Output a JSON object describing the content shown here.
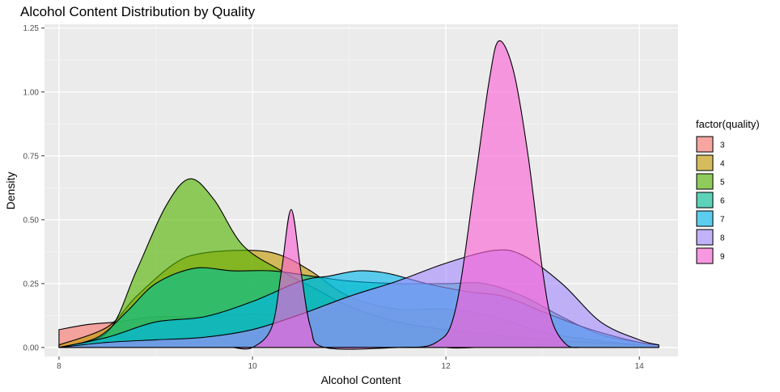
{
  "chart_data": {
    "type": "area",
    "title": "Alcohol Content Distribution by Quality",
    "xlabel": "Alcohol Content",
    "ylabel": "Density",
    "xlim": [
      7.85,
      14.4
    ],
    "ylim": [
      -0.035,
      1.265
    ],
    "x_ticks": [
      8,
      10,
      12,
      14
    ],
    "y_ticks": [
      0.0,
      0.25,
      0.5,
      0.75,
      1.0,
      1.25
    ],
    "x_tick_labels": [
      "8",
      "10",
      "12",
      "14"
    ],
    "y_tick_labels": [
      "0.00",
      "0.25",
      "0.50",
      "0.75",
      "1.00",
      "1.25"
    ],
    "grid": true,
    "legend": {
      "title": "factor(quality)",
      "position": "right"
    },
    "series": [
      {
        "name": "3",
        "color": "#F8766D",
        "points": [
          [
            8.0,
            0.07
          ],
          [
            8.3,
            0.09
          ],
          [
            8.6,
            0.1
          ],
          [
            9.0,
            0.12
          ],
          [
            9.5,
            0.12
          ],
          [
            10.0,
            0.13
          ],
          [
            10.5,
            0.12
          ],
          [
            11.0,
            0.08
          ],
          [
            11.5,
            0.03
          ],
          [
            12.0,
            0.0
          ],
          [
            12.3,
            0.0
          ]
        ]
      },
      {
        "name": "4",
        "color": "#C49A00",
        "points": [
          [
            8.0,
            0.01
          ],
          [
            8.5,
            0.08
          ],
          [
            8.8,
            0.2
          ],
          [
            9.2,
            0.33
          ],
          [
            9.5,
            0.37
          ],
          [
            10.0,
            0.38
          ],
          [
            10.3,
            0.36
          ],
          [
            10.6,
            0.3
          ],
          [
            11.0,
            0.2
          ],
          [
            11.5,
            0.15
          ],
          [
            12.0,
            0.15
          ],
          [
            12.5,
            0.12
          ],
          [
            13.0,
            0.06
          ],
          [
            13.5,
            0.03
          ],
          [
            14.0,
            0.01
          ],
          [
            14.2,
            0.0
          ]
        ]
      },
      {
        "name": "5",
        "color": "#53B400",
        "points": [
          [
            8.0,
            0.0
          ],
          [
            8.5,
            0.06
          ],
          [
            8.8,
            0.3
          ],
          [
            9.1,
            0.55
          ],
          [
            9.35,
            0.66
          ],
          [
            9.6,
            0.58
          ],
          [
            9.9,
            0.4
          ],
          [
            10.3,
            0.3
          ],
          [
            10.7,
            0.22
          ],
          [
            11.0,
            0.16
          ],
          [
            11.5,
            0.1
          ],
          [
            12.0,
            0.07
          ],
          [
            12.5,
            0.05
          ],
          [
            13.0,
            0.03
          ],
          [
            13.5,
            0.02
          ],
          [
            14.0,
            0.01
          ],
          [
            14.2,
            0.0
          ]
        ]
      },
      {
        "name": "6",
        "color": "#00C094",
        "points": [
          [
            8.0,
            0.0
          ],
          [
            8.4,
            0.04
          ],
          [
            8.7,
            0.14
          ],
          [
            9.0,
            0.25
          ],
          [
            9.4,
            0.31
          ],
          [
            9.8,
            0.3
          ],
          [
            10.2,
            0.3
          ],
          [
            10.6,
            0.28
          ],
          [
            11.0,
            0.26
          ],
          [
            11.5,
            0.25
          ],
          [
            12.0,
            0.25
          ],
          [
            12.4,
            0.25
          ],
          [
            12.8,
            0.2
          ],
          [
            13.2,
            0.12
          ],
          [
            13.6,
            0.05
          ],
          [
            14.0,
            0.02
          ],
          [
            14.2,
            0.01
          ]
        ]
      },
      {
        "name": "7",
        "color": "#00B6EB",
        "points": [
          [
            8.0,
            0.0
          ],
          [
            8.5,
            0.04
          ],
          [
            9.0,
            0.1
          ],
          [
            9.5,
            0.12
          ],
          [
            10.0,
            0.18
          ],
          [
            10.5,
            0.26
          ],
          [
            10.8,
            0.28
          ],
          [
            11.1,
            0.3
          ],
          [
            11.4,
            0.29
          ],
          [
            11.8,
            0.25
          ],
          [
            12.2,
            0.22
          ],
          [
            12.6,
            0.2
          ],
          [
            13.0,
            0.14
          ],
          [
            13.5,
            0.07
          ],
          [
            14.0,
            0.02
          ],
          [
            14.2,
            0.01
          ]
        ]
      },
      {
        "name": "8",
        "color": "#A58AFF",
        "points": [
          [
            8.0,
            0.0
          ],
          [
            8.5,
            0.02
          ],
          [
            9.0,
            0.03
          ],
          [
            9.5,
            0.04
          ],
          [
            10.0,
            0.07
          ],
          [
            10.5,
            0.13
          ],
          [
            11.0,
            0.2
          ],
          [
            11.5,
            0.26
          ],
          [
            12.0,
            0.33
          ],
          [
            12.5,
            0.38
          ],
          [
            12.8,
            0.36
          ],
          [
            13.2,
            0.25
          ],
          [
            13.6,
            0.1
          ],
          [
            14.0,
            0.03
          ],
          [
            14.2,
            0.01
          ]
        ]
      },
      {
        "name": "9",
        "color": "#FB61D7",
        "points": [
          [
            9.8,
            0.0
          ],
          [
            10.0,
            0.0
          ],
          [
            10.2,
            0.08
          ],
          [
            10.3,
            0.3
          ],
          [
            10.4,
            0.54
          ],
          [
            10.5,
            0.3
          ],
          [
            10.6,
            0.08
          ],
          [
            10.75,
            0.0
          ],
          [
            11.5,
            0.0
          ],
          [
            11.9,
            0.02
          ],
          [
            12.1,
            0.15
          ],
          [
            12.3,
            0.65
          ],
          [
            12.45,
            1.05
          ],
          [
            12.55,
            1.2
          ],
          [
            12.7,
            1.08
          ],
          [
            12.85,
            0.75
          ],
          [
            13.0,
            0.3
          ],
          [
            13.1,
            0.1
          ],
          [
            13.25,
            0.01
          ],
          [
            13.4,
            0.0
          ]
        ]
      }
    ]
  }
}
